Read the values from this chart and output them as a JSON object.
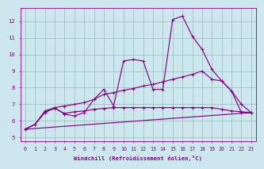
{
  "xlabel": "Windchill (Refroidissement éolien,°C)",
  "xlim": [
    -0.5,
    23.5
  ],
  "ylim": [
    4.8,
    12.8
  ],
  "yticks": [
    5,
    6,
    7,
    8,
    9,
    10,
    11,
    12
  ],
  "xticks": [
    0,
    1,
    2,
    3,
    4,
    5,
    6,
    7,
    8,
    9,
    10,
    11,
    12,
    13,
    14,
    15,
    16,
    17,
    18,
    19,
    20,
    21,
    22,
    23
  ],
  "bg_color": "#cce8ee",
  "line_color": "#880088",
  "grid_color": "#99bbbb",
  "series1_x": [
    0,
    1,
    2,
    3,
    4,
    5,
    6,
    7,
    8,
    9,
    10,
    11,
    12,
    13,
    14,
    15,
    16,
    17,
    18,
    19,
    20,
    21,
    22,
    23
  ],
  "series1_y": [
    5.5,
    5.8,
    6.6,
    6.8,
    6.4,
    6.3,
    6.5,
    7.3,
    7.9,
    6.9,
    9.6,
    9.7,
    9.6,
    7.9,
    7.9,
    12.1,
    12.3,
    11.1,
    10.3,
    9.1,
    8.4,
    7.8,
    6.5,
    6.5
  ],
  "series2_x": [
    0,
    1,
    2,
    3,
    4,
    5,
    6,
    7,
    8,
    9,
    10,
    11,
    12,
    13,
    14,
    15,
    16,
    17,
    18,
    19,
    20,
    21,
    22,
    23
  ],
  "series2_y": [
    5.5,
    5.8,
    6.5,
    6.8,
    6.9,
    7.0,
    7.1,
    7.3,
    7.6,
    7.7,
    7.85,
    7.95,
    8.1,
    8.2,
    8.35,
    8.5,
    8.65,
    8.8,
    9.0,
    8.5,
    8.4,
    7.8,
    7.0,
    6.5
  ],
  "series3_x": [
    0,
    1,
    2,
    3,
    4,
    5,
    6,
    7,
    8,
    9,
    10,
    11,
    12,
    13,
    14,
    15,
    16,
    17,
    18,
    19,
    20,
    21,
    22,
    23
  ],
  "series3_y": [
    5.5,
    5.8,
    6.55,
    6.75,
    6.45,
    6.55,
    6.6,
    6.7,
    6.75,
    6.8,
    6.8,
    6.8,
    6.8,
    6.8,
    6.8,
    6.8,
    6.8,
    6.8,
    6.8,
    6.8,
    6.7,
    6.6,
    6.55,
    6.5
  ],
  "series4_x": [
    0,
    23
  ],
  "series4_y": [
    5.5,
    6.5
  ]
}
